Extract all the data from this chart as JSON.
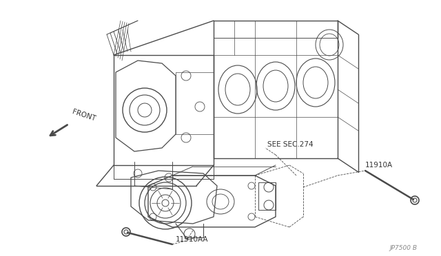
{
  "background_color": "#ffffff",
  "line_color": "#4a4a4a",
  "text_color": "#333333",
  "labels": {
    "front_arrow": "FRONT",
    "see_sec": "SEE SEC.274",
    "part1": "11910A",
    "part2": "11910AA",
    "ref_code": "JP7500 B"
  },
  "figsize": [
    6.4,
    3.72
  ],
  "dpi": 100
}
